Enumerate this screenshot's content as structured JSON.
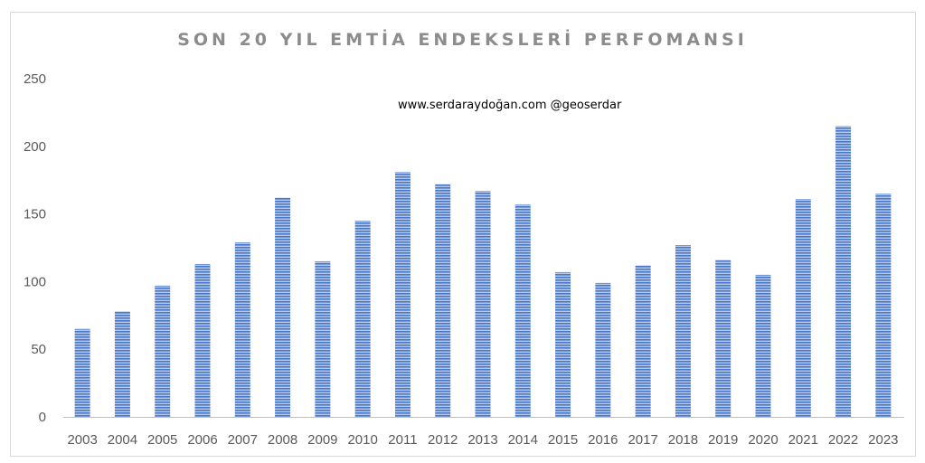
{
  "chart_data": {
    "type": "bar",
    "title": "SON 20 YIL EMTİA ENDEKSLERİ PERFOMANSI",
    "annotation": "www.serdaraydoğan.com @geoserdar",
    "categories": [
      "2003",
      "2004",
      "2005",
      "2006",
      "2007",
      "2008",
      "2009",
      "2010",
      "2011",
      "2012",
      "2013",
      "2014",
      "2015",
      "2016",
      "2017",
      "2018",
      "2019",
      "2020",
      "2021",
      "2022",
      "2023"
    ],
    "values": [
      65,
      78,
      97,
      113,
      129,
      162,
      115,
      145,
      181,
      172,
      167,
      157,
      107,
      99,
      112,
      127,
      116,
      105,
      161,
      215,
      165
    ],
    "ylim": [
      0,
      250
    ],
    "yticks": [
      0,
      50,
      100,
      150,
      200,
      250
    ],
    "xlabel": "",
    "ylabel": "",
    "grid": false,
    "legend": "none",
    "bar_color": "#4472c4",
    "bar_stripe_color": "#a9c1ea"
  }
}
